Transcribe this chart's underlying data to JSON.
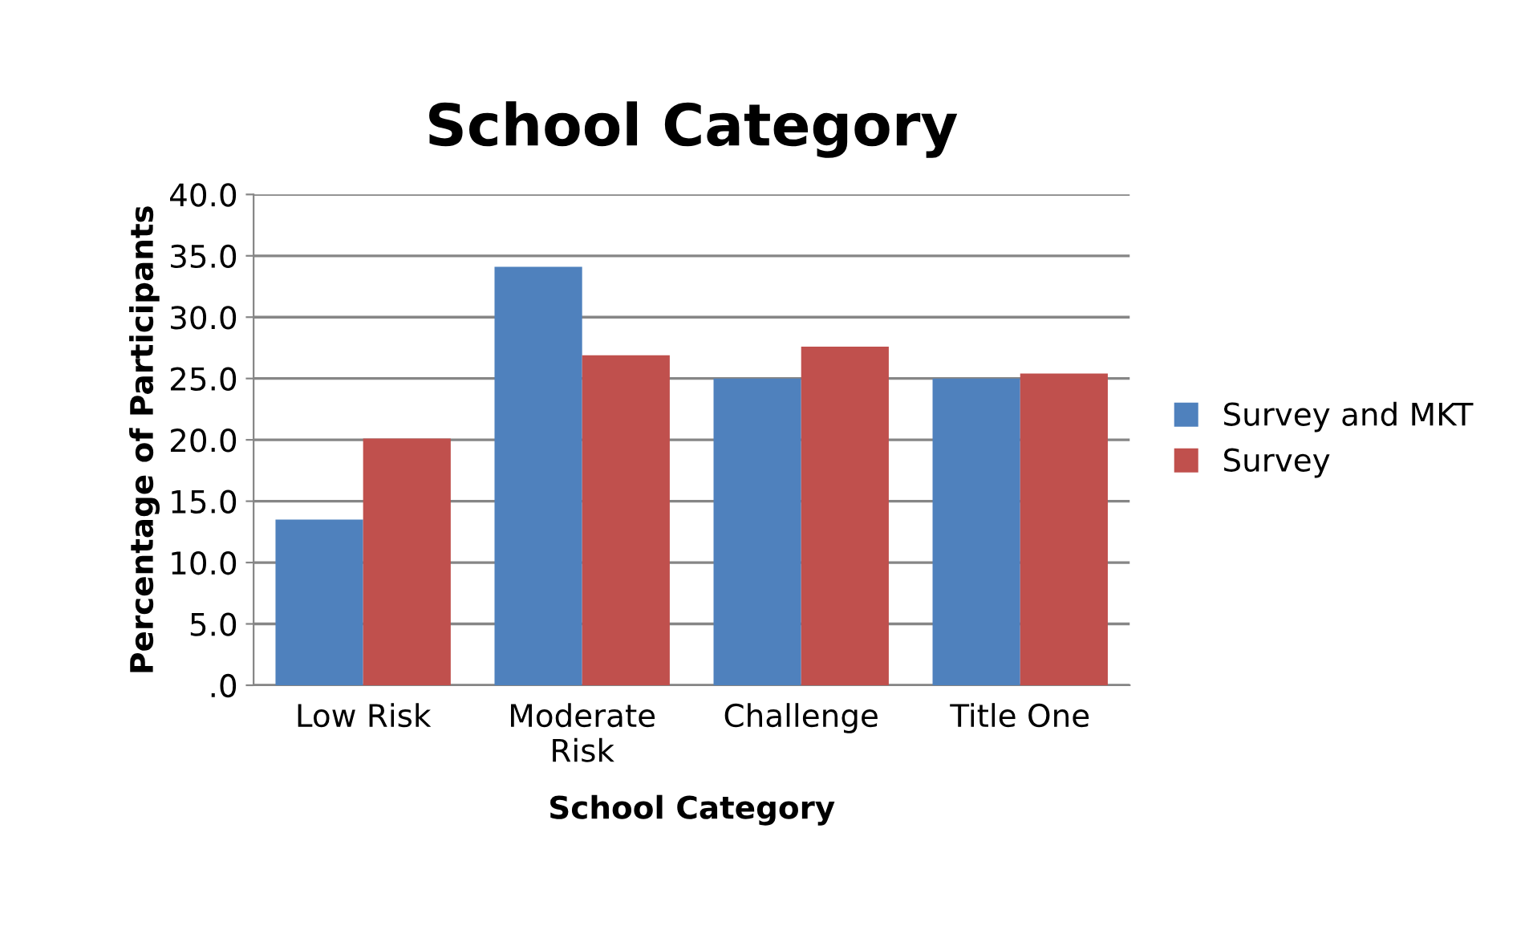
{
  "chart_data": {
    "type": "bar",
    "title": "School Category",
    "xlabel": "School Category",
    "ylabel": "Percentage of Participants",
    "categories": [
      "Low Risk",
      "Moderate\nRisk",
      "Challenge",
      "Title One"
    ],
    "series": [
      {
        "name": "Survey and MKT",
        "color": "#4f81bd",
        "values": [
          13.5,
          34.1,
          25.0,
          25.0
        ]
      },
      {
        "name": "Survey",
        "color": "#c0504d",
        "values": [
          20.1,
          26.9,
          27.6,
          25.4
        ]
      }
    ],
    "ylim": [
      0,
      40
    ],
    "yticks": [
      {
        "value": 0,
        "label": ".0"
      },
      {
        "value": 5,
        "label": "5.0"
      },
      {
        "value": 10,
        "label": "10.0"
      },
      {
        "value": 15,
        "label": "15.0"
      },
      {
        "value": 20,
        "label": "20.0"
      },
      {
        "value": 25,
        "label": "25.0"
      },
      {
        "value": 30,
        "label": "30.0"
      },
      {
        "value": 35,
        "label": "35.0"
      },
      {
        "value": 40,
        "label": "40.0"
      }
    ],
    "grid": "y",
    "legend": "right"
  }
}
